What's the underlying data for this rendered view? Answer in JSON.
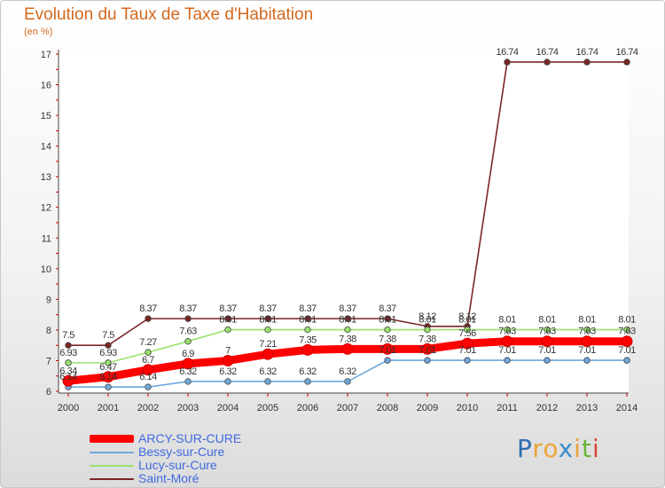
{
  "chart_data": {
    "type": "line",
    "title": "Evolution du Taux de Taxe d'Habitation",
    "subtitle": "(en %)",
    "x": [
      "2000",
      "2001",
      "2002",
      "2003",
      "2004",
      "2005",
      "2006",
      "2007",
      "2008",
      "2009",
      "2010",
      "2011",
      "2012",
      "2013",
      "2014"
    ],
    "ylim": [
      6,
      17
    ],
    "yticks": [
      "6",
      "7",
      "8",
      "9",
      "10",
      "11",
      "12",
      "13",
      "14",
      "15",
      "16",
      "17"
    ],
    "grid": false,
    "legend_position": "bottom-left",
    "series": [
      {
        "name": "ARCY-SUR-CURE",
        "color": "#ff0000",
        "values": [
          6.34,
          6.47,
          6.7,
          6.9,
          7.0,
          7.21,
          7.35,
          7.38,
          7.38,
          7.38,
          7.56,
          7.63,
          7.63,
          7.63,
          7.63
        ],
        "labels": [
          "6.34",
          "6.47",
          "6.7",
          "6.9",
          "7",
          "7.21",
          "7.35",
          "7.38",
          "7.38",
          "7.38",
          "7.56",
          "7.63",
          "7.63",
          "7.63",
          "7.63"
        ]
      },
      {
        "name": "Bessy-sur-Cure",
        "color": "#6fa8dc",
        "values": [
          6.14,
          6.14,
          6.14,
          6.32,
          6.32,
          6.32,
          6.32,
          6.32,
          7.01,
          7.01,
          7.01,
          7.01,
          7.01,
          7.01,
          7.01
        ],
        "labels": [
          "6.14",
          "6.14",
          "6.14",
          "6.32",
          "6.32",
          "6.32",
          "6.32",
          "6.32",
          "7.01",
          "7.01",
          "7.01",
          "7.01",
          "7.01",
          "7.01",
          "7.01"
        ]
      },
      {
        "name": "Lucy-sur-Cure",
        "color": "#99e26e",
        "values": [
          6.93,
          6.93,
          7.27,
          7.63,
          8.01,
          8.01,
          8.01,
          8.01,
          8.01,
          8.01,
          8.01,
          8.01,
          8.01,
          8.01,
          8.01
        ],
        "labels": [
          "6.93",
          "6.93",
          "7.27",
          "7.63",
          "8.01",
          "8.01",
          "8.01",
          "8.01",
          "8.01",
          "8.01",
          "8.01",
          "8.01",
          "8.01",
          "8.01",
          "8.01"
        ]
      },
      {
        "name": "Saint-Moré",
        "color": "#7b2525",
        "values": [
          7.5,
          7.5,
          8.37,
          8.37,
          8.37,
          8.37,
          8.37,
          8.37,
          8.37,
          8.12,
          8.12,
          16.74,
          16.74,
          16.74,
          16.74
        ],
        "labels": [
          "7.5",
          "7.5",
          "8.37",
          "8.37",
          "8.37",
          "8.37",
          "8.37",
          "8.37",
          "8.37",
          "8.12",
          "8.12",
          "16.74",
          "16.74",
          "16.74",
          "16.74"
        ]
      }
    ]
  },
  "logo": {
    "letters": [
      "P",
      "r",
      "o",
      "x",
      "i",
      "t",
      "i"
    ],
    "colors": [
      "#2f6fb0",
      "#e8a33c",
      "#f0a53a",
      "#3a8ec8",
      "#e8a33c",
      "#67b53a",
      "#d8473a"
    ]
  }
}
